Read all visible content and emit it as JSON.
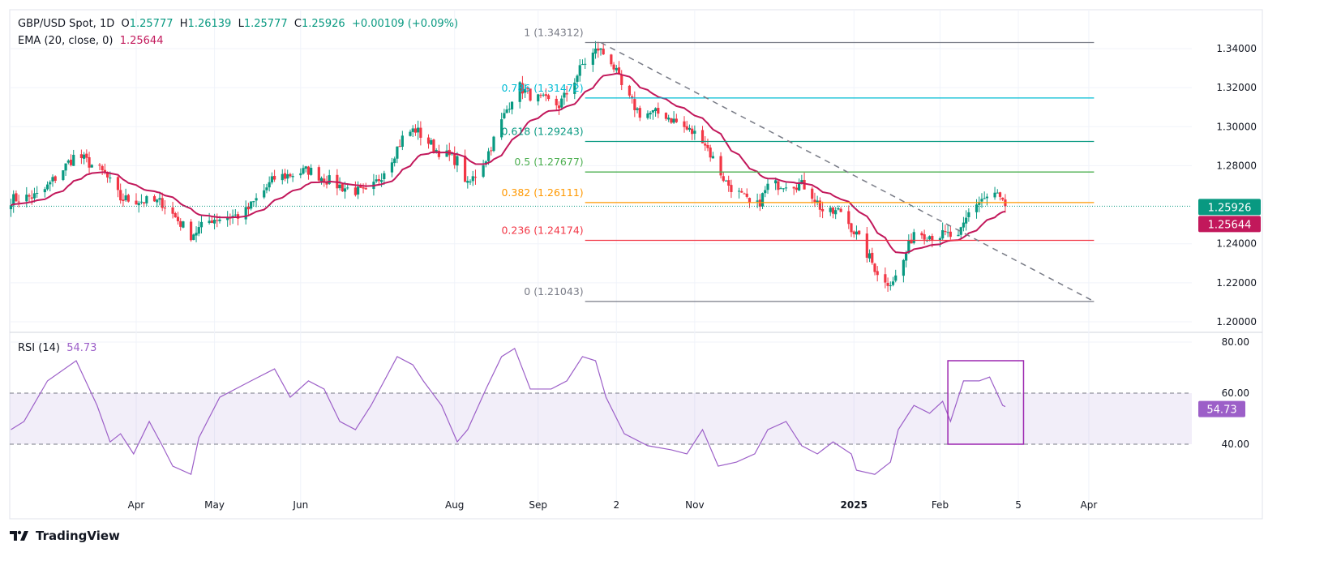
{
  "header": {
    "symbol": "GBP/USD Spot, 1D",
    "o_label": "O",
    "o": "1.25777",
    "h_label": "H",
    "h": "1.26139",
    "l_label": "L",
    "l": "1.25777",
    "c_label": "C",
    "c": "1.25926",
    "change": "+0.00109 (+0.09%)",
    "ema_label": "EMA (20, close, 0)",
    "ema_value": "1.25644",
    "rsi_label": "RSI (14)",
    "rsi_value": "54.73"
  },
  "branding": {
    "logo_text": "TradingView"
  },
  "colors": {
    "up": "#089981",
    "down": "#f23645",
    "ema": "#c2185b",
    "rsi": "#9c5fc8",
    "rsi_band": "#7e57c2",
    "grid": "#f0f3fa",
    "text": "#131722"
  },
  "chart_data": [
    {
      "type": "candlestick",
      "title": "GBP/USD Spot, 1D",
      "price_axis": {
        "ticks": [
          "1.34000",
          "1.32000",
          "1.30000",
          "1.28000",
          "1.24000",
          "1.22000",
          "1.20000"
        ],
        "ylim": [
          1.195,
          1.345
        ]
      },
      "time_axis": {
        "ticks": [
          {
            "label": "Apr",
            "date": "2024-04-01"
          },
          {
            "label": "May",
            "date": "2024-05-01"
          },
          {
            "label": "Jun",
            "date": "2024-06-03"
          },
          {
            "label": "Aug",
            "date": "2024-08-01"
          },
          {
            "label": "Sep",
            "date": "2024-09-02"
          },
          {
            "label": "2",
            "date": "2024-10-02"
          },
          {
            "label": "Nov",
            "date": "2024-11-01"
          },
          {
            "label": "2025",
            "date": "2025-01-01",
            "bold": true
          },
          {
            "label": "Feb",
            "date": "2025-02-03"
          },
          {
            "label": "5",
            "date": "2025-03-05"
          },
          {
            "label": "Apr",
            "date": "2025-04-01"
          }
        ]
      },
      "close_series_approx": [
        [
          "2024-02-13",
          1.2627
        ],
        [
          "2024-02-24",
          1.2647
        ],
        [
          "2024-03-09",
          1.286
        ],
        [
          "2024-03-20",
          1.2756
        ],
        [
          "2024-03-26",
          1.263
        ],
        [
          "2024-04-11",
          1.261
        ],
        [
          "2024-04-22",
          1.2445
        ],
        [
          "2024-04-30",
          1.2527
        ],
        [
          "2024-05-12",
          1.2548
        ],
        [
          "2024-05-24",
          1.2735
        ],
        [
          "2024-06-06",
          1.2777
        ],
        [
          "2024-06-18",
          1.2694
        ],
        [
          "2024-06-29",
          1.2652
        ],
        [
          "2024-07-07",
          1.2818
        ],
        [
          "2024-07-13",
          1.2964
        ],
        [
          "2024-07-17",
          1.2985
        ],
        [
          "2024-07-25",
          1.2881
        ],
        [
          "2024-08-03",
          1.2818
        ],
        [
          "2024-08-06",
          1.2694
        ],
        [
          "2024-08-13",
          1.2839
        ],
        [
          "2024-08-19",
          1.3026
        ],
        [
          "2024-08-25",
          1.3213
        ],
        [
          "2024-08-31",
          1.3151
        ],
        [
          "2024-09-10",
          1.311
        ],
        [
          "2024-09-14",
          1.3192
        ],
        [
          "2024-09-19",
          1.3317
        ],
        [
          "2024-09-25",
          1.34
        ],
        [
          "2024-09-30",
          1.3338
        ],
        [
          "2024-10-05",
          1.3172
        ],
        [
          "2024-10-11",
          1.3068
        ],
        [
          "2024-10-20",
          1.3068
        ],
        [
          "2024-10-29",
          1.2985
        ],
        [
          "2024-11-04",
          1.2943
        ],
        [
          "2024-11-07",
          1.286
        ],
        [
          "2024-11-13",
          1.2714
        ],
        [
          "2024-11-20",
          1.2631
        ],
        [
          "2024-11-24",
          1.2569
        ],
        [
          "2024-11-29",
          1.2694
        ],
        [
          "2024-12-07",
          1.2714
        ],
        [
          "2024-12-14",
          1.2694
        ],
        [
          "2024-12-21",
          1.2548
        ],
        [
          "2024-12-27",
          1.2569
        ],
        [
          "2025-01-02",
          1.2444
        ],
        [
          "2025-01-09",
          1.2278
        ],
        [
          "2025-01-13",
          1.2195
        ],
        [
          "2025-01-18",
          1.2237
        ],
        [
          "2025-01-24",
          1.2465
        ],
        [
          "2025-01-30",
          1.2444
        ],
        [
          "2025-02-06",
          1.2444
        ],
        [
          "2025-02-10",
          1.2424
        ],
        [
          "2025-02-15",
          1.259
        ],
        [
          "2025-02-19",
          1.263
        ],
        [
          "2025-02-25",
          1.2652
        ],
        [
          "2025-02-28",
          1.25926
        ]
      ],
      "last_price": {
        "value": "1.25926"
      },
      "ema": {
        "period": 20,
        "last_value": "1.25644"
      },
      "fibonacci": {
        "levels": [
          {
            "label": "1 (1.34312)",
            "price": 1.34312,
            "color": "#787b86"
          },
          {
            "label": "0.786 (1.31472)",
            "price": 1.31472,
            "color": "#00bcd4"
          },
          {
            "label": "0.618 (1.29243)",
            "price": 1.29243,
            "color": "#089981"
          },
          {
            "label": "0.5 (1.27677)",
            "price": 1.27677,
            "color": "#4caf50"
          },
          {
            "label": "0.382 (1.26111)",
            "price": 1.26111,
            "color": "#ff9800"
          },
          {
            "label": "0.236 (1.24174)",
            "price": 1.24174,
            "color": "#f23645"
          },
          {
            "label": "0 (1.21043)",
            "price": 1.21043,
            "color": "#787b86"
          }
        ],
        "from_date": "2024-09-20",
        "to_date": "2025-04-03",
        "trendline": [
          [
            "2024-09-26",
            1.34312
          ],
          [
            "2025-04-03",
            1.21043
          ]
        ]
      }
    },
    {
      "type": "line",
      "title": "RSI (14)",
      "ylim": [
        25,
        85
      ],
      "ticks": [
        "80.00",
        "60.00",
        "40.00"
      ],
      "band": [
        40,
        60
      ],
      "last_value": "54.73",
      "points": [
        [
          "2024-02-13",
          45.7
        ],
        [
          "2024-02-18",
          48.9
        ],
        [
          "2024-02-27",
          64.8
        ],
        [
          "2024-03-09",
          72.7
        ],
        [
          "2024-03-17",
          55.2
        ],
        [
          "2024-03-22",
          40.9
        ],
        [
          "2024-03-26",
          44.1
        ],
        [
          "2024-03-31",
          36.2
        ],
        [
          "2024-04-06",
          48.9
        ],
        [
          "2024-04-11",
          39.4
        ],
        [
          "2024-04-15",
          31.4
        ],
        [
          "2024-04-22",
          28.2
        ],
        [
          "2024-04-25",
          42.5
        ],
        [
          "2024-05-03",
          58.4
        ],
        [
          "2024-05-15",
          64.8
        ],
        [
          "2024-05-24",
          69.5
        ],
        [
          "2024-05-30",
          58.4
        ],
        [
          "2024-06-06",
          64.8
        ],
        [
          "2024-06-12",
          61.6
        ],
        [
          "2024-06-18",
          48.9
        ],
        [
          "2024-06-24",
          45.7
        ],
        [
          "2024-06-30",
          55.2
        ],
        [
          "2024-07-10",
          74.3
        ],
        [
          "2024-07-16",
          71.1
        ],
        [
          "2024-07-20",
          64.8
        ],
        [
          "2024-07-27",
          55.2
        ],
        [
          "2024-08-02",
          40.9
        ],
        [
          "2024-08-06",
          45.7
        ],
        [
          "2024-08-13",
          61.6
        ],
        [
          "2024-08-19",
          74.3
        ],
        [
          "2024-08-24",
          77.5
        ],
        [
          "2024-08-30",
          61.6
        ],
        [
          "2024-09-07",
          61.6
        ],
        [
          "2024-09-13",
          64.8
        ],
        [
          "2024-09-19",
          74.3
        ],
        [
          "2024-09-24",
          72.7
        ],
        [
          "2024-09-28",
          58.4
        ],
        [
          "2024-10-05",
          44.1
        ],
        [
          "2024-10-14",
          39.4
        ],
        [
          "2024-10-23",
          37.8
        ],
        [
          "2024-10-29",
          36.2
        ],
        [
          "2024-11-04",
          45.7
        ],
        [
          "2024-11-10",
          31.4
        ],
        [
          "2024-11-17",
          33.0
        ],
        [
          "2024-11-24",
          36.2
        ],
        [
          "2024-11-29",
          45.7
        ],
        [
          "2024-12-06",
          48.9
        ],
        [
          "2024-12-12",
          39.4
        ],
        [
          "2024-12-18",
          36.2
        ],
        [
          "2024-12-24",
          40.9
        ],
        [
          "2024-12-31",
          36.2
        ],
        [
          "2025-01-02",
          29.8
        ],
        [
          "2025-01-09",
          28.2
        ],
        [
          "2025-01-15",
          33.0
        ],
        [
          "2025-01-18",
          45.7
        ],
        [
          "2025-01-24",
          55.2
        ],
        [
          "2025-01-30",
          52.1
        ],
        [
          "2025-02-04",
          56.8
        ],
        [
          "2025-02-07",
          48.9
        ],
        [
          "2025-02-12",
          64.8
        ],
        [
          "2025-02-18",
          64.8
        ],
        [
          "2025-02-22",
          66.3
        ],
        [
          "2025-02-27",
          55.2
        ],
        [
          "2025-02-28",
          54.73
        ]
      ],
      "annotation_box": {
        "from_date": "2025-02-06",
        "to_date": "2025-03-07",
        "top": 72.7,
        "bottom": 40,
        "color": "#9c27b0"
      }
    }
  ]
}
